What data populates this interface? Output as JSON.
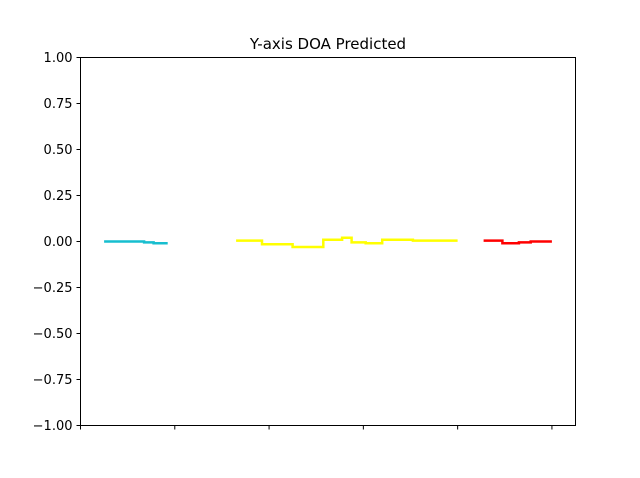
{
  "chart_data": {
    "type": "line",
    "title": "Y-axis DOA Predicted",
    "xlabel": "",
    "ylabel": "",
    "ylim": [
      -1.0,
      1.0
    ],
    "xlim": [
      -0.2,
      10.3
    ],
    "grid": false,
    "yticks": [
      "1.00",
      "0.75",
      "0.50",
      "0.25",
      "0.00",
      "−0.25",
      "−0.50",
      "−0.75",
      "−1.00"
    ],
    "ytick_values": [
      1.0,
      0.75,
      0.5,
      0.25,
      0.0,
      -0.25,
      -0.5,
      -0.75,
      -1.0
    ],
    "xtick_values": [
      -0.2,
      1.8,
      3.8,
      5.8,
      7.8,
      9.8
    ],
    "series": [
      {
        "color": "#17becf",
        "points": [
          [
            0.3,
            0.0
          ],
          [
            0.95,
            0.0
          ],
          [
            0.95,
            0.0
          ],
          [
            1.15,
            0.0
          ],
          [
            1.15,
            -0.005
          ],
          [
            1.35,
            -0.005
          ],
          [
            1.35,
            -0.01
          ],
          [
            1.65,
            -0.01
          ]
        ]
      },
      {
        "color": "#ffff00",
        "points": [
          [
            3.1,
            0.005
          ],
          [
            3.65,
            0.005
          ],
          [
            3.65,
            -0.015
          ],
          [
            4.3,
            -0.015
          ],
          [
            4.3,
            -0.03
          ],
          [
            4.95,
            -0.03
          ],
          [
            4.95,
            0.01
          ],
          [
            5.35,
            0.01
          ],
          [
            5.35,
            0.02
          ],
          [
            5.55,
            0.02
          ],
          [
            5.55,
            -0.005
          ],
          [
            5.85,
            -0.005
          ],
          [
            5.85,
            -0.01
          ],
          [
            6.2,
            -0.01
          ],
          [
            6.2,
            0.01
          ],
          [
            6.85,
            0.01
          ],
          [
            6.85,
            0.005
          ],
          [
            7.8,
            0.005
          ]
        ]
      },
      {
        "color": "#ff0000",
        "points": [
          [
            8.35,
            0.005
          ],
          [
            8.75,
            0.005
          ],
          [
            8.75,
            -0.01
          ],
          [
            9.1,
            -0.01
          ],
          [
            9.1,
            -0.005
          ],
          [
            9.35,
            -0.005
          ],
          [
            9.35,
            0.0
          ],
          [
            9.8,
            0.0
          ]
        ]
      }
    ]
  }
}
